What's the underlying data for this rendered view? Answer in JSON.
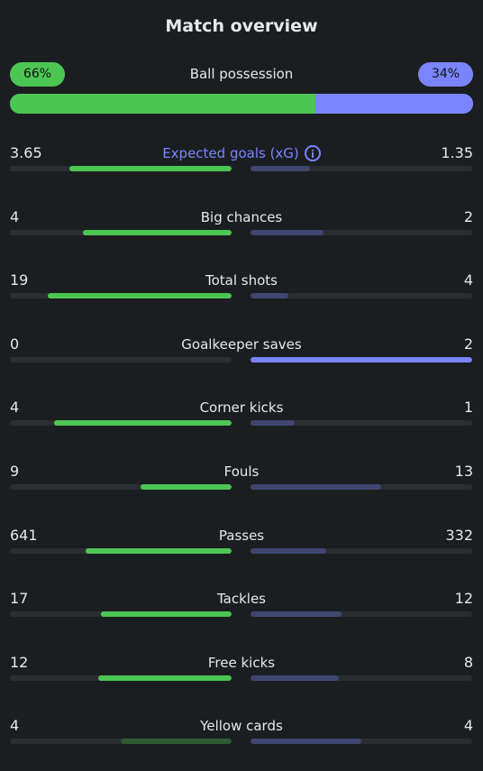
{
  "title": "Match overview",
  "possession": {
    "label": "Ball possession",
    "home_text": "66%",
    "away_text": "34%",
    "home_fraction": 0.66
  },
  "colors": {
    "home": "#4cc653",
    "away": "#7b84ff",
    "away_muted": "#3f4770",
    "track": "#2a2e33"
  },
  "stats": [
    {
      "label": "Expected goals (xG)",
      "home": "3.65",
      "away": "1.35",
      "home_fraction": 0.73,
      "away_fraction": 0.27,
      "info_icon": true,
      "highlight": true
    },
    {
      "label": "Big chances",
      "home": "4",
      "away": "2",
      "home_fraction": 0.67,
      "away_fraction": 0.33
    },
    {
      "label": "Total shots",
      "home": "19",
      "away": "4",
      "home_fraction": 0.83,
      "away_fraction": 0.17
    },
    {
      "label": "Goalkeeper saves",
      "home": "0",
      "away": "2",
      "home_fraction": 0.0,
      "away_fraction": 1.0,
      "away_winner": true
    },
    {
      "label": "Corner kicks",
      "home": "4",
      "away": "1",
      "home_fraction": 0.8,
      "away_fraction": 0.2
    },
    {
      "label": "Fouls",
      "home": "9",
      "away": "13",
      "home_fraction": 0.41,
      "away_fraction": 0.59
    },
    {
      "label": "Passes",
      "home": "641",
      "away": "332",
      "home_fraction": 0.66,
      "away_fraction": 0.34
    },
    {
      "label": "Tackles",
      "home": "17",
      "away": "12",
      "home_fraction": 0.59,
      "away_fraction": 0.41
    },
    {
      "label": "Free kicks",
      "home": "12",
      "away": "8",
      "home_fraction": 0.6,
      "away_fraction": 0.4
    },
    {
      "label": "Yellow cards",
      "home": "4",
      "away": "4",
      "home_fraction": 0.5,
      "away_fraction": 0.5,
      "tie": true
    }
  ]
}
